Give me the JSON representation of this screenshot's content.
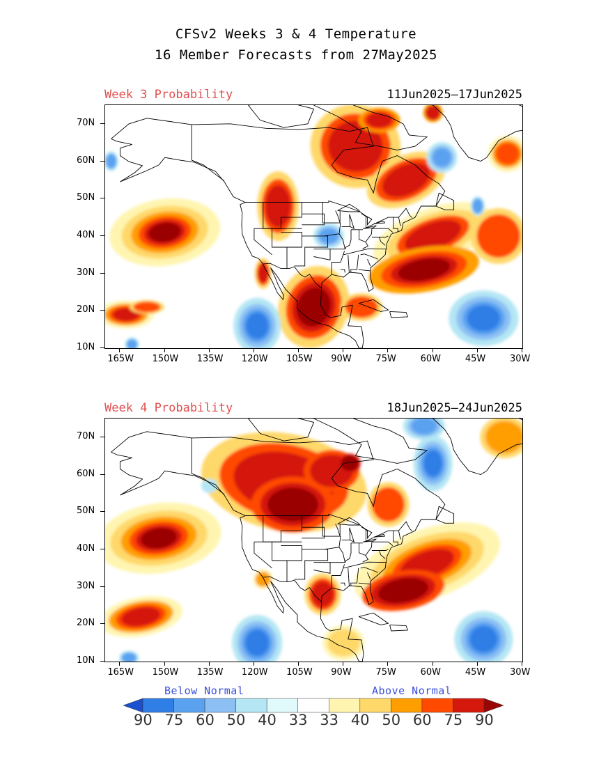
{
  "header": {
    "title_line1": "CFSv2 Weeks 3 & 4 Temperature",
    "title_line2": "16 Member Forecasts from 27May2025"
  },
  "panels": [
    {
      "label": "Week 3 Probability",
      "dates": "11Jun2025—17Jun2025"
    },
    {
      "label": "Week 4 Probability",
      "dates": "18Jun2025—24Jun2025"
    }
  ],
  "axes": {
    "lat_labels": [
      "70N",
      "60N",
      "50N",
      "40N",
      "30N",
      "20N",
      "10N"
    ],
    "lon_labels": [
      "165W",
      "150W",
      "135W",
      "120W",
      "105W",
      "90W",
      "75W",
      "60W",
      "45W",
      "30W"
    ]
  },
  "legend": {
    "below_label": "Below Normal",
    "above_label": "Above Normal",
    "values": [
      "90",
      "75",
      "60",
      "50",
      "40",
      "33",
      "33",
      "40",
      "50",
      "60",
      "75",
      "90"
    ],
    "colors": [
      "#1a4fd0",
      "#2f7ee6",
      "#5aa2f0",
      "#8cc0f4",
      "#b4e6f4",
      "#e0fafc",
      "#ffffff",
      "#fff5b0",
      "#ffd86a",
      "#ff9e00",
      "#ff4a00",
      "#d4180c",
      "#9a0606"
    ]
  },
  "colors": {
    "panel_label": "#e05050",
    "legend_text": "#3a4fd8"
  }
}
